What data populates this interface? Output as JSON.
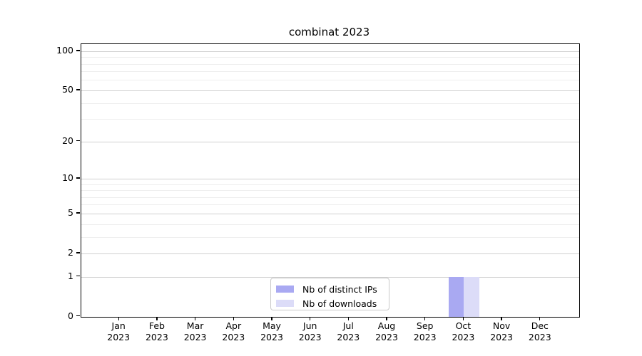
{
  "chart_data": {
    "type": "bar",
    "title": "combinat 2023",
    "categories": [
      "Jan",
      "Feb",
      "Mar",
      "Apr",
      "May",
      "Jun",
      "Jul",
      "Aug",
      "Sep",
      "Oct",
      "Nov",
      "Dec"
    ],
    "year_label": "2023",
    "series": [
      {
        "name": "Nb of distinct IPs",
        "color": "#a9a9f2",
        "values": [
          0,
          0,
          0,
          0,
          0,
          0,
          0,
          0,
          0,
          1,
          0,
          0
        ]
      },
      {
        "name": "Nb of downloads",
        "color": "#dcdcf8",
        "values": [
          0,
          0,
          0,
          0,
          0,
          0,
          0,
          0,
          0,
          1,
          0,
          0
        ]
      }
    ],
    "xlabel": "",
    "ylabel": "",
    "yscale": "log1p",
    "ylim": [
      0,
      113
    ],
    "y_major_ticks": [
      0,
      1,
      2,
      5,
      10,
      20,
      50,
      100
    ],
    "y_minor_ticks": [
      3,
      4,
      6,
      7,
      8,
      9,
      30,
      40,
      60,
      70,
      80,
      90
    ],
    "grid": "horizontal",
    "legend_position": "inside-bottom-center"
  },
  "colors": {
    "major_grid": "#d0d0d0",
    "minor_grid": "#eeeeee",
    "axis": "#000000",
    "background": "#ffffff",
    "legend_border": "#c9c9c9"
  }
}
